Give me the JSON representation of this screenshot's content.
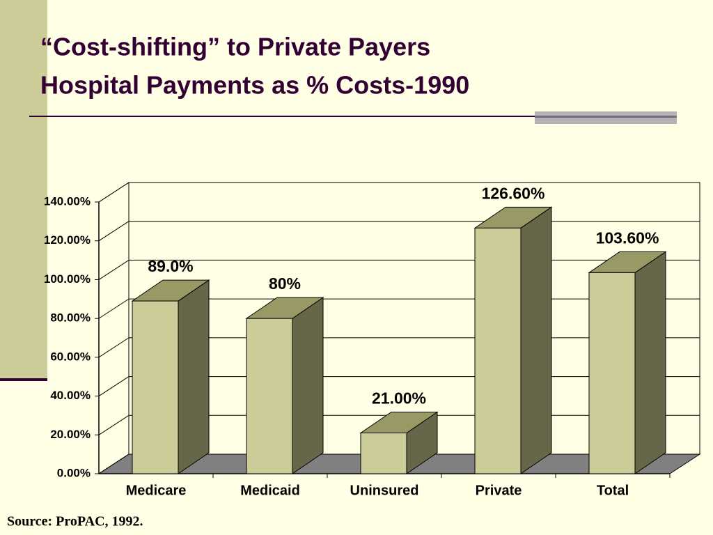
{
  "chart_data": {
    "type": "bar3d",
    "title": "“Cost-shifting” to Private Payers",
    "subtitle": "Hospital Payments as % Costs-1990",
    "categories": [
      "Medicare",
      "Medicaid",
      "Uninsured",
      "Private",
      "Total"
    ],
    "values": [
      89.0,
      80,
      21.0,
      126.6,
      103.6
    ],
    "value_labels": [
      "89.0%",
      "80%",
      "21.00%",
      "126.60%",
      "103.60%"
    ],
    "color": "#cccc99",
    "ylim": [
      0,
      140
    ],
    "yticks": [
      {
        "value": 0,
        "label": "0.00%"
      },
      {
        "value": 20,
        "label": "20.00%"
      },
      {
        "value": 40,
        "label": "40.00%"
      },
      {
        "value": 60,
        "label": "60.00%"
      },
      {
        "value": 80,
        "label": "80.00%"
      },
      {
        "value": 100,
        "label": "100.00%"
      },
      {
        "value": 120,
        "label": "120.00%"
      },
      {
        "value": 140,
        "label": "140.00%"
      }
    ],
    "grid": true,
    "source": "Source:  ProPAC, 1992."
  }
}
